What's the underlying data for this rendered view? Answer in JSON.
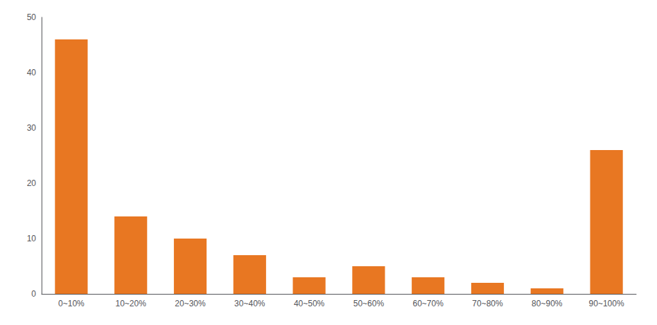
{
  "chart_data": {
    "type": "bar",
    "categories": [
      "0~10%",
      "10~20%",
      "20~30%",
      "30~40%",
      "40~50%",
      "50~60%",
      "60~70%",
      "70~80%",
      "80~90%",
      "90~100%"
    ],
    "values": [
      46,
      14,
      10,
      7,
      3,
      5,
      3,
      2,
      1,
      26
    ],
    "color": "#E87722",
    "ylim": [
      0,
      50
    ],
    "yticks": [
      0,
      10,
      20,
      30,
      40,
      50
    ],
    "grid": false
  }
}
